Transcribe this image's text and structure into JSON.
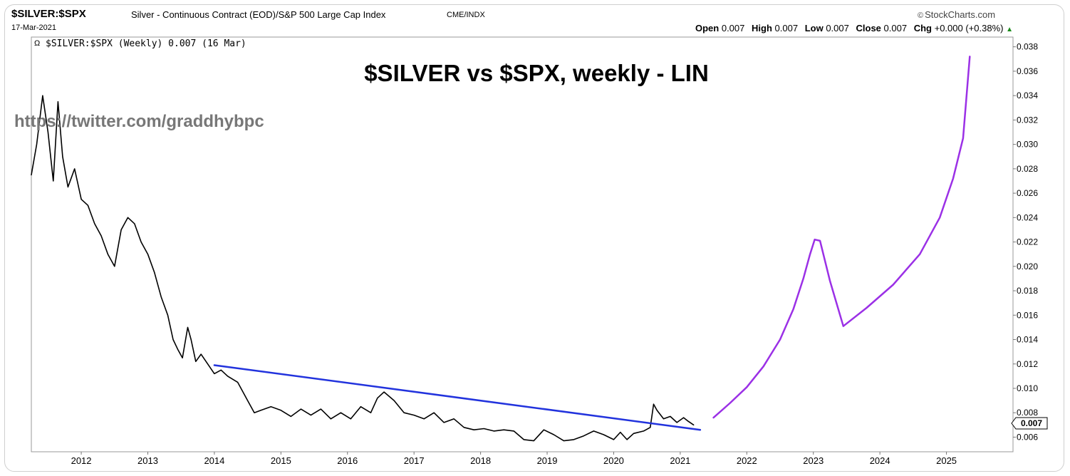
{
  "header": {
    "symbol": "$SILVER:$SPX",
    "description": "Silver - Continuous Contract (EOD)/S&P 500 Large Cap Index",
    "exchange": "CME/INDX",
    "date": "17-Mar-2021",
    "brand": "StockCharts.com",
    "brand_icon": "copyright-icon",
    "ohlc": {
      "open_label": "Open",
      "open": "0.007",
      "high_label": "High",
      "high": "0.007",
      "low_label": "Low",
      "low": "0.007",
      "close_label": "Close",
      "close": "0.007",
      "chg_label": "Chg",
      "chg": "+0.000 (+0.38%)",
      "chg_direction_icon": "triangle-up-icon"
    }
  },
  "chart_data": {
    "type": "line",
    "legend": "$SILVER:$SPX (Weekly) 0.007 (16 Mar)",
    "annotation_title": "$SILVER vs $SPX, weekly - LIN",
    "annotation_watermark": "https://twitter.com/graddhybpc",
    "last_value_label": "0.007",
    "xlim": [
      2011.25,
      2026.0
    ],
    "ylim": [
      0.0048,
      0.0388
    ],
    "x_ticks": [
      "2012",
      "2013",
      "2014",
      "2015",
      "2016",
      "2017",
      "2018",
      "2019",
      "2020",
      "2021",
      "2022",
      "2023",
      "2024",
      "2025"
    ],
    "x_tick_values": [
      2012,
      2013,
      2014,
      2015,
      2016,
      2017,
      2018,
      2019,
      2020,
      2021,
      2022,
      2023,
      2024,
      2025
    ],
    "y_ticks": [
      "0.038",
      "0.036",
      "0.034",
      "0.032",
      "0.030",
      "0.028",
      "0.026",
      "0.024",
      "0.022",
      "0.020",
      "0.018",
      "0.016",
      "0.014",
      "0.012",
      "0.010",
      "0.008",
      "0.006"
    ],
    "y_tick_values": [
      0.038,
      0.036,
      0.034,
      0.032,
      0.03,
      0.028,
      0.026,
      0.024,
      0.022,
      0.02,
      0.018,
      0.016,
      0.014,
      0.012,
      0.01,
      0.008,
      0.006
    ],
    "grid": false,
    "series": [
      {
        "color": "#000000",
        "x": [
          2011.25,
          2011.33,
          2011.42,
          2011.5,
          2011.58,
          2011.65,
          2011.72,
          2011.8,
          2011.9,
          2012.0,
          2012.1,
          2012.2,
          2012.3,
          2012.4,
          2012.5,
          2012.6,
          2012.7,
          2012.8,
          2012.9,
          2013.0,
          2013.1,
          2013.2,
          2013.3,
          2013.38,
          2013.45,
          2013.52,
          2013.6,
          2013.65,
          2013.72,
          2013.8,
          2013.9,
          2014.0,
          2014.1,
          2014.2,
          2014.35,
          2014.5,
          2014.6,
          2014.7,
          2014.85,
          2015.0,
          2015.15,
          2015.3,
          2015.45,
          2015.6,
          2015.75,
          2015.9,
          2016.05,
          2016.2,
          2016.35,
          2016.45,
          2016.55,
          2016.7,
          2016.85,
          2017.0,
          2017.15,
          2017.3,
          2017.45,
          2017.6,
          2017.75,
          2017.9,
          2018.05,
          2018.2,
          2018.35,
          2018.5,
          2018.65,
          2018.8,
          2018.95,
          2019.1,
          2019.25,
          2019.4,
          2019.55,
          2019.7,
          2019.85,
          2020.0,
          2020.1,
          2020.2,
          2020.3,
          2020.45,
          2020.55,
          2020.6,
          2020.65,
          2020.75,
          2020.85,
          2020.95,
          2021.05,
          2021.12,
          2021.2
        ],
        "values": [
          0.0275,
          0.03,
          0.034,
          0.031,
          0.027,
          0.0335,
          0.029,
          0.0265,
          0.028,
          0.0255,
          0.025,
          0.0235,
          0.0225,
          0.021,
          0.02,
          0.023,
          0.024,
          0.0235,
          0.022,
          0.021,
          0.0195,
          0.0175,
          0.016,
          0.014,
          0.0132,
          0.0125,
          0.015,
          0.014,
          0.0122,
          0.0128,
          0.012,
          0.0112,
          0.0115,
          0.011,
          0.0105,
          0.009,
          0.008,
          0.0082,
          0.0085,
          0.0082,
          0.0077,
          0.0083,
          0.0078,
          0.0083,
          0.0075,
          0.008,
          0.0075,
          0.0085,
          0.008,
          0.0092,
          0.0097,
          0.009,
          0.008,
          0.0078,
          0.0075,
          0.008,
          0.0072,
          0.0075,
          0.0068,
          0.0066,
          0.0067,
          0.0065,
          0.0066,
          0.0065,
          0.0058,
          0.0057,
          0.0066,
          0.0062,
          0.0057,
          0.0058,
          0.0061,
          0.0065,
          0.0062,
          0.0058,
          0.0064,
          0.0058,
          0.0063,
          0.0065,
          0.0068,
          0.0087,
          0.0082,
          0.0075,
          0.0077,
          0.0072,
          0.0076,
          0.0073,
          0.007
        ]
      },
      {
        "color": "#2233dd",
        "x": [
          2014.0,
          2021.3
        ],
        "values": [
          0.0119,
          0.0066
        ]
      },
      {
        "color": "#9b30e6",
        "x": [
          2021.5,
          2021.75,
          2022.0,
          2022.25,
          2022.5,
          2022.7,
          2022.85,
          2022.95,
          2023.02,
          2023.1,
          2023.25,
          2023.45,
          2023.8,
          2024.2,
          2024.6,
          2024.9,
          2025.1,
          2025.25,
          2025.35
        ],
        "values": [
          0.0076,
          0.0088,
          0.0101,
          0.0118,
          0.014,
          0.0165,
          0.019,
          0.021,
          0.0222,
          0.0221,
          0.0188,
          0.0151,
          0.0166,
          0.0185,
          0.021,
          0.024,
          0.0272,
          0.0305,
          0.0372
        ]
      }
    ]
  }
}
